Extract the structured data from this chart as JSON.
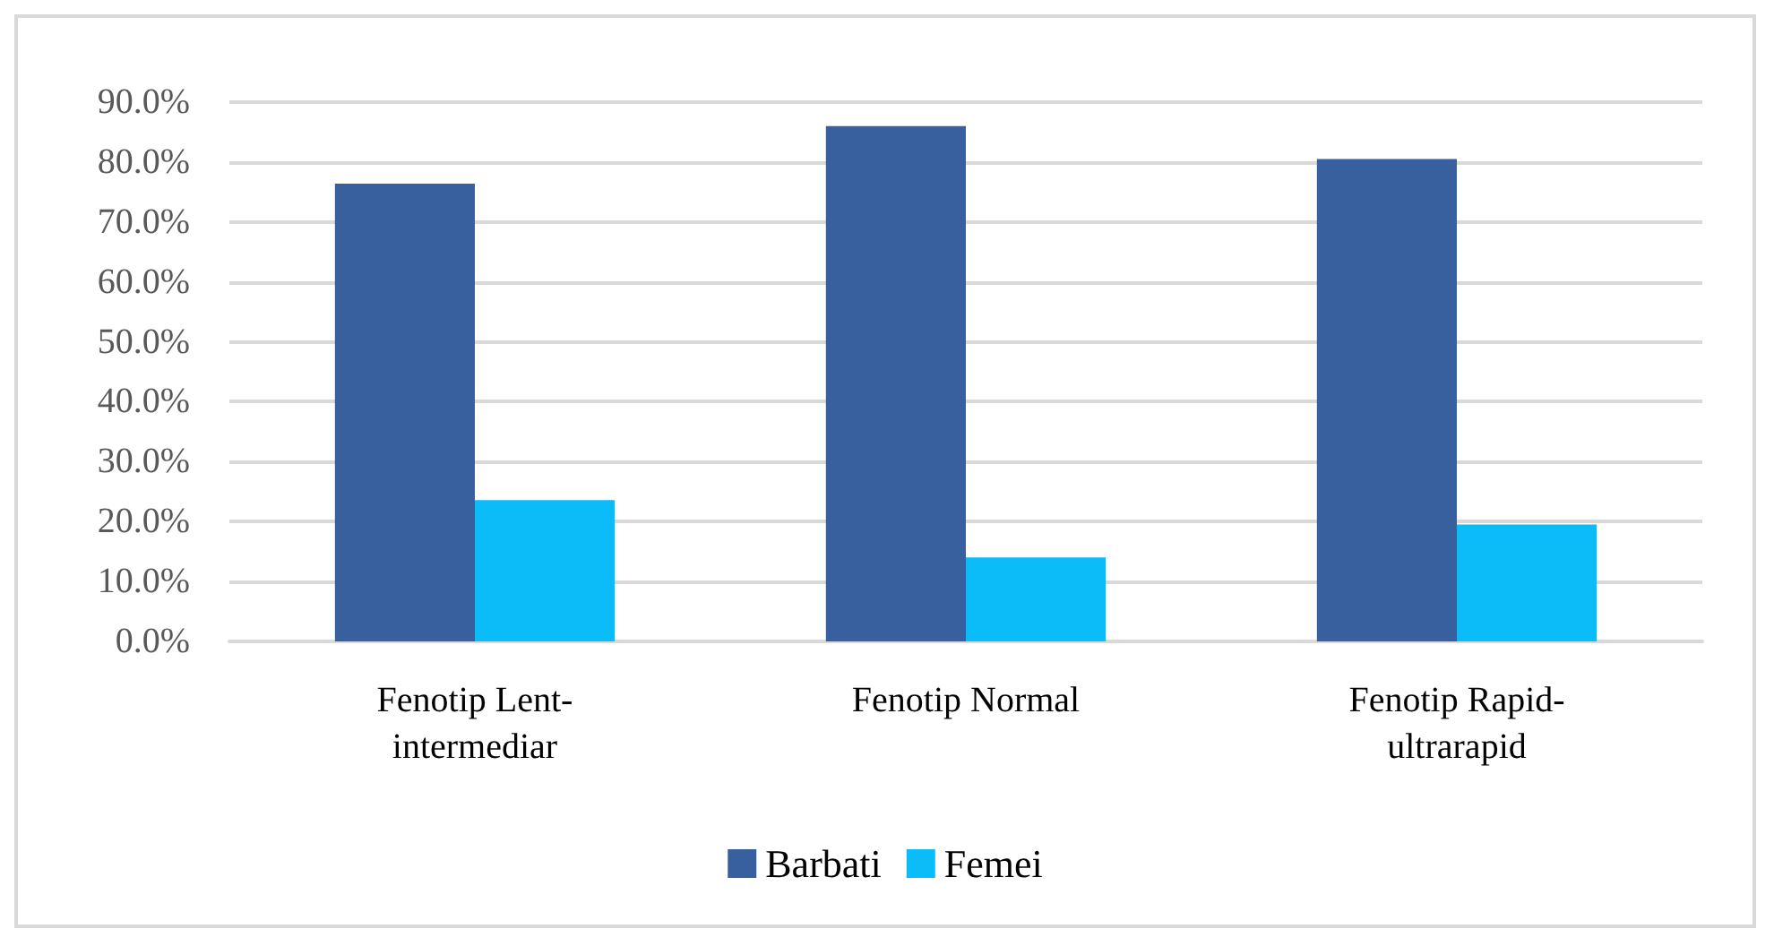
{
  "chart_data": {
    "type": "bar",
    "categories": [
      "Fenotip Lent-intermediar",
      "Fenotip Normal",
      "Fenotip Rapid-ultrarapid"
    ],
    "series": [
      {
        "name": "Barbati",
        "color": "#385f9e",
        "values": [
          76.4,
          86.0,
          80.5
        ]
      },
      {
        "name": "Femei",
        "color": "#0bbcf8",
        "values": [
          23.6,
          14.0,
          19.5
        ]
      }
    ],
    "ylim": [
      0,
      90
    ],
    "yticks": [
      {
        "value": 0,
        "label": "0.0%"
      },
      {
        "value": 10,
        "label": "10.0%"
      },
      {
        "value": 20,
        "label": "20.0%"
      },
      {
        "value": 30,
        "label": "30.0%"
      },
      {
        "value": 40,
        "label": "40.0%"
      },
      {
        "value": 50,
        "label": "50.0%"
      },
      {
        "value": 60,
        "label": "60.0%"
      },
      {
        "value": 70,
        "label": "70.0%"
      },
      {
        "value": 80,
        "label": "80.0%"
      },
      {
        "value": 90,
        "label": "90.0%"
      }
    ],
    "grid": "y",
    "legend": "bottom"
  }
}
